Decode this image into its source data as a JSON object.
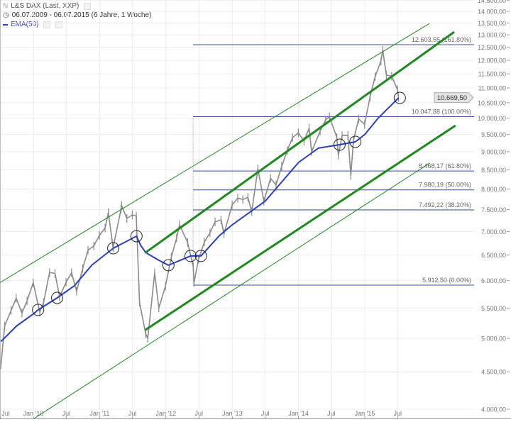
{
  "header": {
    "title": "L&S DAX (Last, XXP)",
    "range": "06.07.2009 - 06.07.2015 (6 Jahre, 1 Woche)",
    "indicator": "EMA(50)",
    "title_icon": "chart-type-icon",
    "range_icon": "clock-icon"
  },
  "colors": {
    "price": "#8a8a8a",
    "ema": "#2a3fbf",
    "channel": "#1e8a1e",
    "fib": "#3b4f9a",
    "grid": "#ececec",
    "axis_text": "#777777"
  },
  "chart_data": {
    "type": "line",
    "y_scale": "log",
    "ylim": [
      4000,
      14500
    ],
    "xlim": [
      "2009-07-01",
      "2015-12-31"
    ],
    "grid": true,
    "y_ticks": [
      "4.000,00",
      "4.500,00",
      "5.000,00",
      "5.500,00",
      "6.000,00",
      "6.500,00",
      "7.000,00",
      "7.500,00",
      "8.000,00",
      "8.500,00",
      "9.000,00",
      "9.500,00",
      "10.000,00",
      "10.500,00",
      "11.000,00",
      "11.500,00",
      "12.000,00",
      "12.500,00",
      "13.000,00",
      "13.500,00",
      "14.000,00",
      "14.500,00"
    ],
    "y_tick_values": [
      4000,
      4500,
      5000,
      5500,
      6000,
      6500,
      7000,
      7500,
      8000,
      8500,
      9000,
      9500,
      10000,
      10500,
      11000,
      11500,
      12000,
      12500,
      13000,
      13500,
      14000,
      14500
    ],
    "x_ticks": [
      {
        "label": "Jul",
        "date": "2009-07-01"
      },
      {
        "label": "Jan '10",
        "date": "2010-01-01"
      },
      {
        "label": "Jul",
        "date": "2010-07-01"
      },
      {
        "label": "Jan '11",
        "date": "2011-01-01"
      },
      {
        "label": "Jul",
        "date": "2011-07-01"
      },
      {
        "label": "Jan '12",
        "date": "2012-01-01"
      },
      {
        "label": "Jul",
        "date": "2012-07-01"
      },
      {
        "label": "Jan '13",
        "date": "2013-01-01"
      },
      {
        "label": "Jul",
        "date": "2013-07-01"
      },
      {
        "label": "Jan '14",
        "date": "2014-01-01"
      },
      {
        "label": "Jul",
        "date": "2014-07-01"
      },
      {
        "label": "Jan '15",
        "date": "2015-01-01"
      },
      {
        "label": "Jul",
        "date": "2015-07-01"
      }
    ],
    "last_price": {
      "label": "10.669,50",
      "value": 10669.5
    },
    "price_series": {
      "name": "L&S DAX",
      "points": [
        [
          "2009-07-06",
          4600
        ],
        [
          "2009-07-27",
          5200
        ],
        [
          "2009-08-31",
          5460
        ],
        [
          "2009-09-28",
          5675
        ],
        [
          "2009-10-30",
          5415
        ],
        [
          "2009-11-27",
          5625
        ],
        [
          "2009-12-31",
          5957
        ],
        [
          "2010-02-05",
          5430
        ],
        [
          "2010-02-26",
          5598
        ],
        [
          "2010-03-31",
          6153
        ],
        [
          "2010-04-30",
          6135
        ],
        [
          "2010-05-25",
          5700
        ],
        [
          "2010-06-30",
          5965
        ],
        [
          "2010-07-30",
          6148
        ],
        [
          "2010-08-27",
          5800
        ],
        [
          "2010-09-30",
          6229
        ],
        [
          "2010-10-29",
          6601
        ],
        [
          "2010-11-30",
          6688
        ],
        [
          "2010-12-31",
          6914
        ],
        [
          "2011-01-31",
          7077
        ],
        [
          "2011-02-18",
          7430
        ],
        [
          "2011-03-16",
          6650
        ],
        [
          "2011-04-29",
          7514
        ],
        [
          "2011-05-02",
          7600
        ],
        [
          "2011-05-31",
          7293
        ],
        [
          "2011-06-30",
          7376
        ],
        [
          "2011-07-22",
          7350
        ],
        [
          "2011-08-09",
          5600
        ],
        [
          "2011-09-12",
          5070
        ],
        [
          "2011-09-23",
          5000
        ],
        [
          "2011-10-31",
          6141
        ],
        [
          "2011-11-23",
          5500
        ],
        [
          "2011-12-30",
          5898
        ],
        [
          "2012-01-31",
          6458
        ],
        [
          "2012-02-29",
          6856
        ],
        [
          "2012-03-16",
          7150
        ],
        [
          "2012-04-30",
          6761
        ],
        [
          "2012-05-31",
          6264
        ],
        [
          "2012-06-04",
          5960
        ],
        [
          "2012-06-29",
          6416
        ],
        [
          "2012-07-31",
          6772
        ],
        [
          "2012-08-31",
          6970
        ],
        [
          "2012-09-28",
          7216
        ],
        [
          "2012-10-31",
          7260
        ],
        [
          "2012-11-16",
          6950
        ],
        [
          "2012-12-31",
          7612
        ],
        [
          "2013-01-31",
          7776
        ],
        [
          "2013-02-28",
          7741
        ],
        [
          "2013-03-28",
          7795
        ],
        [
          "2013-04-18",
          7450
        ],
        [
          "2013-05-22",
          8530
        ],
        [
          "2013-06-24",
          7700
        ],
        [
          "2013-07-31",
          8276
        ],
        [
          "2013-08-30",
          8103
        ],
        [
          "2013-09-30",
          8594
        ],
        [
          "2013-10-31",
          9033
        ],
        [
          "2013-11-29",
          9406
        ],
        [
          "2013-12-31",
          9552
        ],
        [
          "2014-01-31",
          9306
        ],
        [
          "2014-02-28",
          9692
        ],
        [
          "2014-03-14",
          9000
        ],
        [
          "2014-04-30",
          9603
        ],
        [
          "2014-05-30",
          9943
        ],
        [
          "2014-06-20",
          10050
        ],
        [
          "2014-07-31",
          9407
        ],
        [
          "2014-08-08",
          8900
        ],
        [
          "2014-08-29",
          9470
        ],
        [
          "2014-09-30",
          9474
        ],
        [
          "2014-10-16",
          8350
        ],
        [
          "2014-10-31",
          9327
        ],
        [
          "2014-11-28",
          9980
        ],
        [
          "2014-12-31",
          9806
        ],
        [
          "2015-01-30",
          10694
        ],
        [
          "2015-02-27",
          11402
        ],
        [
          "2015-03-31",
          11966
        ],
        [
          "2015-04-10",
          12390
        ],
        [
          "2015-04-30",
          11454
        ],
        [
          "2015-05-29",
          11414
        ],
        [
          "2015-06-30",
          10945
        ],
        [
          "2015-07-06",
          10669.5
        ]
      ]
    },
    "ema_series": {
      "name": "EMA(50)",
      "points": [
        [
          "2009-07-06",
          4950
        ],
        [
          "2009-10-01",
          5200
        ],
        [
          "2010-01-01",
          5400
        ],
        [
          "2010-01-27",
          5469
        ],
        [
          "2010-05-12",
          5680
        ],
        [
          "2010-08-15",
          5900
        ],
        [
          "2010-11-20",
          6300
        ],
        [
          "2011-03-17",
          6640
        ],
        [
          "2011-07-23",
          6898
        ],
        [
          "2011-08-15",
          6700
        ],
        [
          "2011-09-12",
          6551
        ],
        [
          "2011-11-20",
          6400
        ],
        [
          "2012-01-15",
          6294
        ],
        [
          "2012-05-16",
          6481
        ],
        [
          "2012-07-12",
          6481
        ],
        [
          "2012-10-20",
          6900
        ],
        [
          "2013-01-01",
          7150
        ],
        [
          "2013-07-01",
          7700
        ],
        [
          "2014-01-01",
          8700
        ],
        [
          "2014-04-20",
          9100
        ],
        [
          "2014-08-15",
          9201
        ],
        [
          "2014-11-10",
          9283
        ],
        [
          "2015-01-01",
          9500
        ],
        [
          "2015-03-15",
          10000
        ],
        [
          "2015-07-06",
          10661
        ]
      ]
    },
    "touch_circles": [
      [
        "2010-01-27",
        5469
      ],
      [
        "2010-05-12",
        5680
      ],
      [
        "2011-03-17",
        6640
      ],
      [
        "2011-07-23",
        6898
      ],
      [
        "2012-01-15",
        6294
      ],
      [
        "2012-05-16",
        6481
      ],
      [
        "2012-07-12",
        6481
      ],
      [
        "2014-08-15",
        9201
      ],
      [
        "2014-11-10",
        9283
      ],
      [
        "2015-07-13",
        10661
      ]
    ],
    "trend_lines": [
      {
        "style": "thick",
        "from": [
          "2011-09-11",
          6551
        ],
        "to": [
          "2016-05-08",
          13122
        ]
      },
      {
        "style": "thick",
        "from": [
          "2011-09-11",
          5136
        ],
        "to": [
          "2016-05-15",
          9772
        ]
      },
      {
        "style": "thin",
        "from": [
          "2009-07-01",
          5960
        ],
        "to": [
          "2015-12-24",
          13478
        ]
      },
      {
        "style": "thin",
        "from": [
          "2009-07-01",
          3625
        ],
        "to": [
          "2015-12-24",
          8680
        ]
      }
    ],
    "fibonacci": {
      "start_date": "2012-05-30",
      "levels": [
        {
          "value": 12603.55,
          "label": "12.603,55 (161.80%)"
        },
        {
          "value": 10047.88,
          "label": "10.047,88 (100.00%)"
        },
        {
          "value": 8468.17,
          "label": "8.468,17 (61.80%)"
        },
        {
          "value": 7980.19,
          "label": "7.980,19 (50.00%)"
        },
        {
          "value": 7492.22,
          "label": "7.492,22 (38.20%)"
        },
        {
          "value": 5912.5,
          "label": "5.912,50 (0.00%)"
        }
      ]
    }
  }
}
